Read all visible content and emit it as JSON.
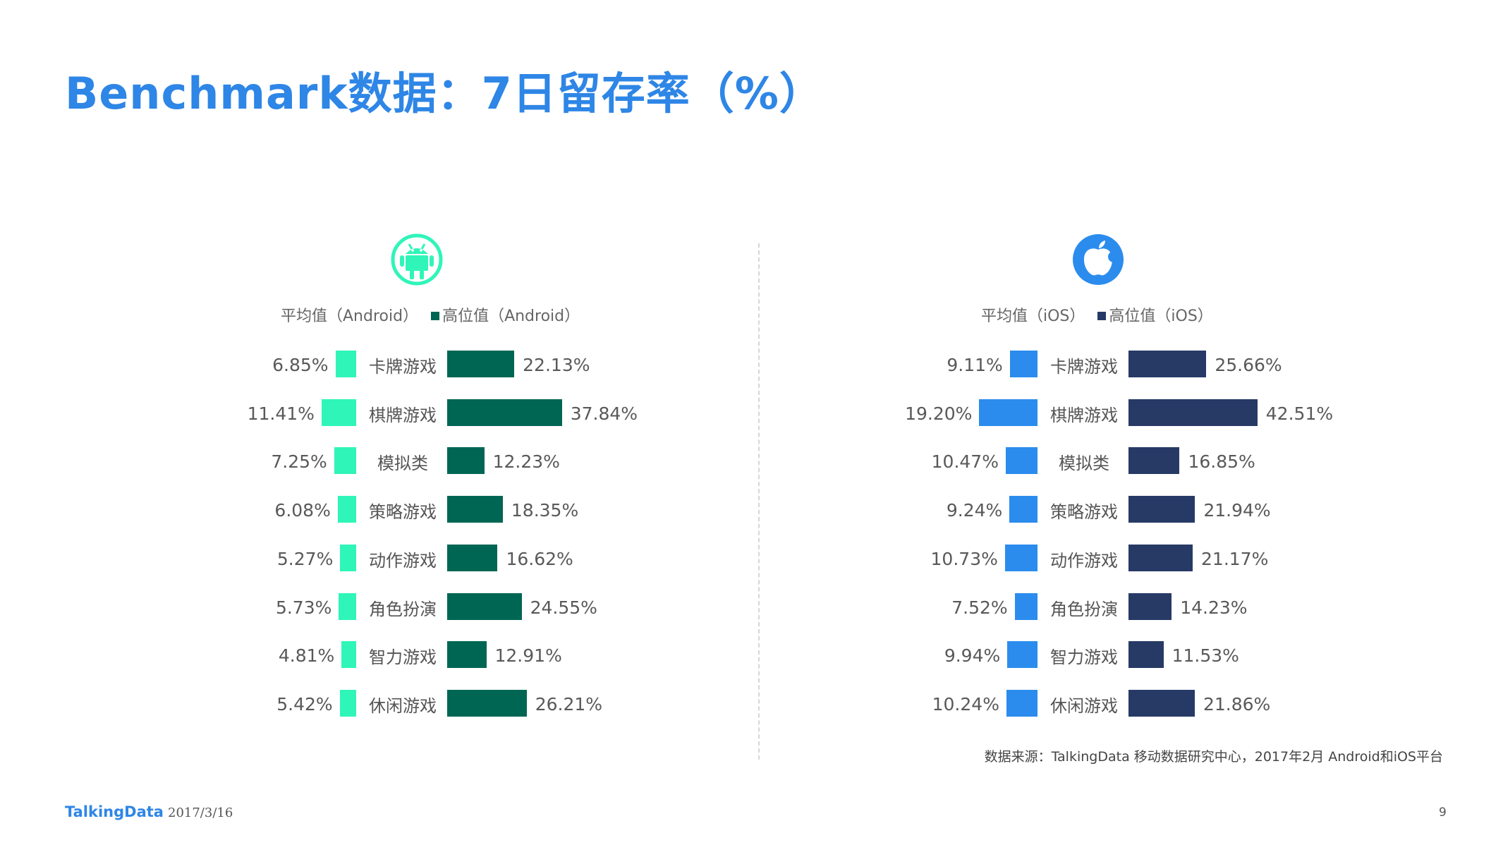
{
  "title": "Benchmark数据：7日留存率（%）",
  "colors": {
    "android_avg": "#2ff5b8",
    "android_high": "#006654",
    "ios_avg": "#2b8cee",
    "ios_high": "#273a66",
    "title": "#2e86e6"
  },
  "icons": {
    "left": "android-icon",
    "right": "apple-icon"
  },
  "chart_data": [
    {
      "type": "bar",
      "orientation": "horizontal-diverging",
      "platform": "Android",
      "categories": [
        "卡牌游戏",
        "棋牌游戏",
        "模拟类",
        "策略游戏",
        "动作游戏",
        "角色扮演",
        "智力游戏",
        "休闲游戏"
      ],
      "series": [
        {
          "name": "平均值（Android）",
          "values": [
            6.85,
            11.41,
            7.25,
            6.08,
            5.27,
            5.73,
            4.81,
            5.42
          ],
          "labels": [
            "6.85%",
            "11.41%",
            "7.25%",
            "6.08%",
            "5.27%",
            "5.73%",
            "4.81%",
            "5.42%"
          ]
        },
        {
          "name": "高位值（Android）",
          "values": [
            22.13,
            37.84,
            12.23,
            18.35,
            16.62,
            24.55,
            12.91,
            26.21
          ],
          "labels": [
            "22.13%",
            "37.84%",
            "12.23%",
            "18.35%",
            "16.62%",
            "24.55%",
            "12.91%",
            "26.21%"
          ]
        }
      ]
    },
    {
      "type": "bar",
      "orientation": "horizontal-diverging",
      "platform": "iOS",
      "categories": [
        "卡牌游戏",
        "棋牌游戏",
        "模拟类",
        "策略游戏",
        "动作游戏",
        "角色扮演",
        "智力游戏",
        "休闲游戏"
      ],
      "series": [
        {
          "name": "平均值（iOS）",
          "values": [
            9.11,
            19.2,
            10.47,
            9.24,
            10.73,
            7.52,
            9.94,
            10.24
          ],
          "labels": [
            "9.11%",
            "19.20%",
            "10.47%",
            "9.24%",
            "10.73%",
            "7.52%",
            "9.94%",
            "10.24%"
          ]
        },
        {
          "name": "高位值（iOS）",
          "values": [
            25.66,
            42.51,
            16.85,
            21.94,
            21.17,
            14.23,
            11.53,
            21.86
          ],
          "labels": [
            "25.66%",
            "42.51%",
            "16.85%",
            "21.94%",
            "21.17%",
            "14.23%",
            "11.53%",
            "21.86%"
          ]
        }
      ]
    }
  ],
  "source": "数据来源：TalkingData 移动数据研究中心，2017年2月 Android和iOS平台",
  "footer": {
    "logo": "TalkingData",
    "date": "2017/3/16",
    "page": "9"
  }
}
